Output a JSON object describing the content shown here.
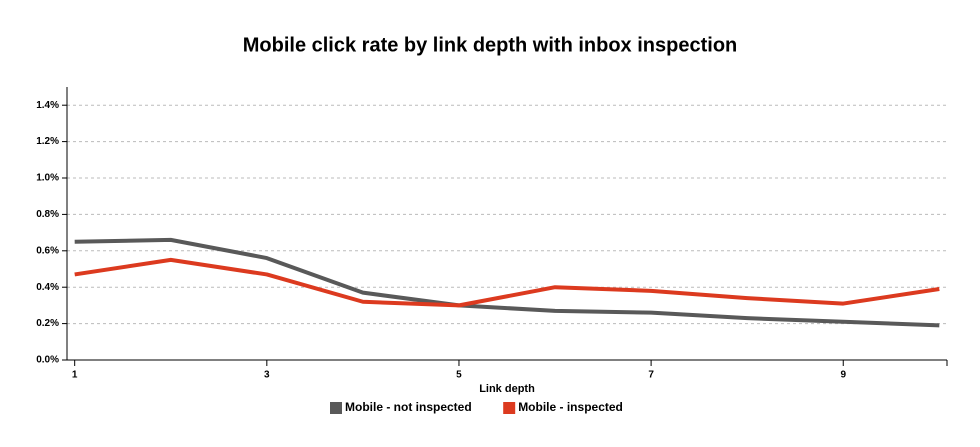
{
  "chart_data": {
    "type": "line",
    "title": "Mobile click rate by link depth with inbox inspection",
    "x_label": "Link depth",
    "x": [
      1,
      2,
      3,
      4,
      5,
      6,
      7,
      8,
      9,
      10
    ],
    "series": [
      {
        "name": "Mobile - not inspected",
        "color": "#595959",
        "values": [
          0.65,
          0.66,
          0.56,
          0.37,
          0.3,
          0.27,
          0.26,
          0.23,
          0.21,
          0.19
        ]
      },
      {
        "name": "Mobile - inspected",
        "color": "#dc3a1f",
        "values": [
          0.47,
          0.55,
          0.47,
          0.32,
          0.3,
          0.4,
          0.38,
          0.34,
          0.31,
          0.39
        ]
      }
    ],
    "xlim": [
      0.92,
      10.08
    ],
    "xticks": [
      1,
      3,
      5,
      7,
      9
    ],
    "ylim": [
      0,
      1.5
    ],
    "yticks": [
      {
        "value": 0,
        "label": "0.0%"
      },
      {
        "value": 0.2,
        "label": "0.2%"
      },
      {
        "value": 0.4,
        "label": "0.4%"
      },
      {
        "value": 0.6,
        "label": "0.6%"
      },
      {
        "value": 0.8,
        "label": "0.8%"
      },
      {
        "value": 1.0,
        "label": "1.0%"
      },
      {
        "value": 1.2,
        "label": "1.2%"
      },
      {
        "value": 1.4,
        "label": "1.4%"
      }
    ],
    "grid": true,
    "legend": "bottom"
  }
}
